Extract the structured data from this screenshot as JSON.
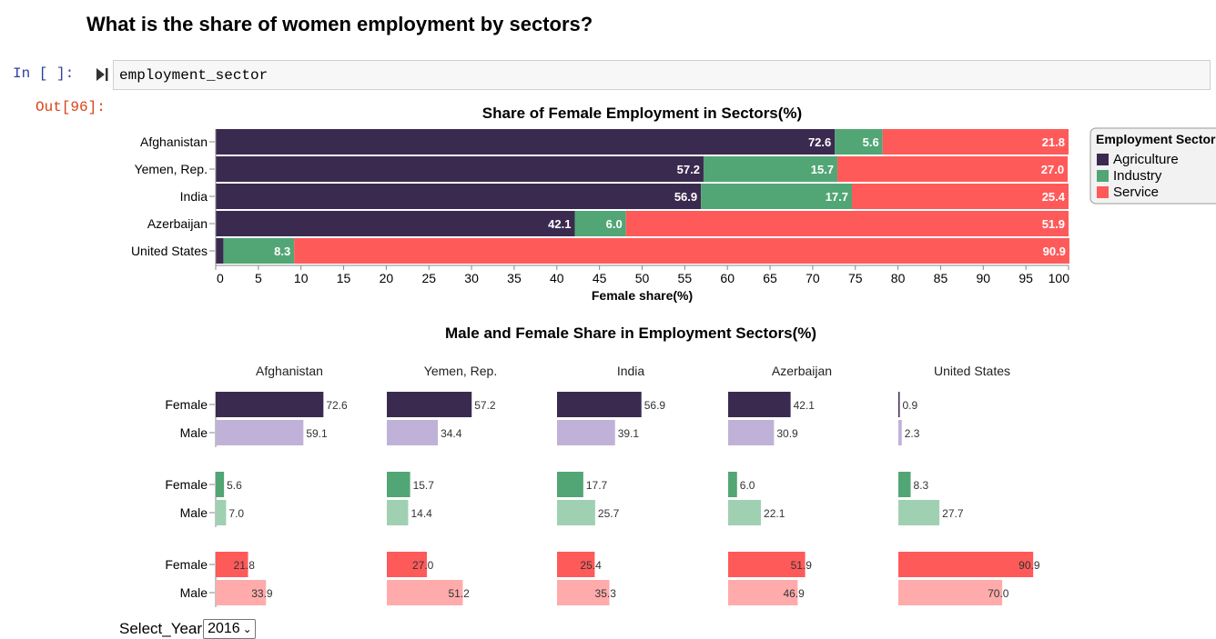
{
  "notebook": {
    "heading": "What is the share of women employment by sectors?",
    "in_prompt": "In [ ]:",
    "out_prompt": "Out[96]:",
    "code": "employment_sector"
  },
  "widget": {
    "label": "Select_Year",
    "selected": "2016"
  },
  "colors": {
    "agriculture": "#3b2a50",
    "industry": "#52a675",
    "service": "#ff5a5a",
    "agriculture_male": "#c0b1d9",
    "industry_male": "#a0d0b2",
    "service_male": "#ffabab"
  },
  "chart_data": [
    {
      "type": "bar",
      "stacked": true,
      "orientation": "horizontal",
      "title": "Share of Female Employment in Sectors(%)",
      "xlabel": "Female share(%)",
      "ylabel": "",
      "xlim": [
        0,
        100
      ],
      "xticks": [
        "0",
        "5",
        "10",
        "15",
        "20",
        "25",
        "30",
        "35",
        "40",
        "45",
        "50",
        "55",
        "60",
        "65",
        "70",
        "75",
        "80",
        "85",
        "90",
        "95",
        "100"
      ],
      "categories": [
        "Afghanistan",
        "Yemen, Rep.",
        "India",
        "Azerbaijan",
        "United States"
      ],
      "series": [
        {
          "name": "Agriculture",
          "values": [
            72.6,
            57.2,
            56.9,
            42.1,
            0.9
          ],
          "labels": [
            "72.6",
            "57.2",
            "56.9",
            "42.1",
            ""
          ]
        },
        {
          "name": "Industry",
          "values": [
            5.6,
            15.7,
            17.7,
            6.0,
            8.3
          ],
          "labels": [
            "5.6",
            "15.7",
            "17.7",
            "6.0",
            "8.3"
          ]
        },
        {
          "name": "Service",
          "values": [
            21.8,
            27.0,
            25.4,
            51.9,
            90.9
          ],
          "labels": [
            "21.8",
            "27.0",
            "25.4",
            "51.9",
            "90.9"
          ]
        }
      ],
      "legend": {
        "title": "Employment Sectors",
        "position": "right",
        "entries": [
          "Agriculture",
          "Industry",
          "Service"
        ]
      }
    },
    {
      "type": "bar",
      "orientation": "horizontal",
      "facets": true,
      "title": "Male and Female Share in Employment Sectors(%)",
      "countries": [
        "Afghanistan",
        "Yemen, Rep.",
        "India",
        "Azerbaijan",
        "United States"
      ],
      "row_labels": [
        "Female",
        "Male"
      ],
      "sectors": [
        {
          "name": "Agriculture",
          "female": [
            72.6,
            57.2,
            56.9,
            42.1,
            0.9
          ],
          "male": [
            59.1,
            34.4,
            39.1,
            30.9,
            2.3
          ],
          "female_labels": [
            "72.6",
            "57.2",
            "56.9",
            "42.1",
            "0.9"
          ],
          "male_labels": [
            "59.1",
            "34.4",
            "39.1",
            "30.9",
            "2.3"
          ]
        },
        {
          "name": "Industry",
          "female": [
            5.6,
            15.7,
            17.7,
            6.0,
            8.3
          ],
          "male": [
            7.0,
            14.4,
            25.7,
            22.1,
            27.7
          ],
          "female_labels": [
            "5.6",
            "15.7",
            "17.7",
            "6.0",
            "8.3"
          ],
          "male_labels": [
            "7.0",
            "14.4",
            "25.7",
            "22.1",
            "27.7"
          ]
        },
        {
          "name": "Service",
          "female": [
            21.8,
            27.0,
            25.4,
            51.9,
            90.9
          ],
          "male": [
            33.9,
            51.2,
            35.3,
            46.9,
            70.0
          ],
          "female_labels": [
            "21.8",
            "27.0",
            "25.4",
            "51.9",
            "90.9"
          ],
          "male_labels": [
            "33.9",
            "51.2",
            "35.3",
            "46.9",
            "70.0"
          ]
        }
      ]
    }
  ]
}
